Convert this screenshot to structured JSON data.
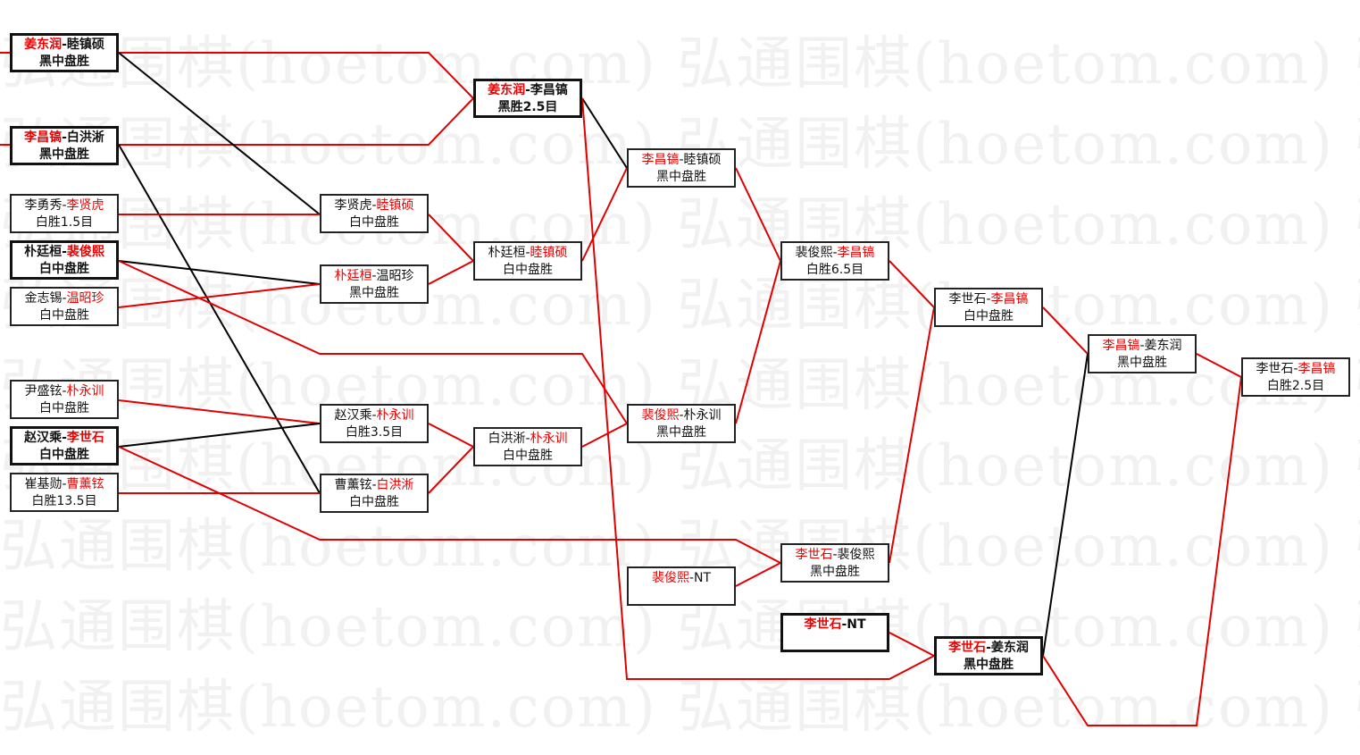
{
  "watermark": "弘通围棋(hoetom.com) 弘通围棋(hoetom.com) 弘通围棋(hoetom.com)",
  "colors": {
    "winner_line": "#e00000",
    "loser_line": "#000000",
    "winner_text": "#e00000"
  },
  "matches": [
    {
      "black": "姜东润",
      "white": "睦镇硕",
      "winner": "black",
      "result": "黑中盘胜",
      "highlight": true
    },
    {
      "black": "李昌镐",
      "white": "白洪淅",
      "winner": "black",
      "result": "黑中盘胜",
      "highlight": true
    },
    {
      "black": "李勇秀",
      "white": "李贤虎",
      "winner": "white",
      "result": "白胜1.5目",
      "highlight": false
    },
    {
      "black": "朴廷桓",
      "white": "裴俊熙",
      "winner": "white",
      "result": "白中盘胜",
      "highlight": true
    },
    {
      "black": "金志锡",
      "white": "温昭珍",
      "winner": "white",
      "result": "白中盘胜",
      "highlight": false
    },
    {
      "black": "尹盛铉",
      "white": "朴永训",
      "winner": "white",
      "result": "白中盘胜",
      "highlight": false
    },
    {
      "black": "赵汉乘",
      "white": "李世石",
      "winner": "white",
      "result": "白中盘胜",
      "highlight": true
    },
    {
      "black": "崔基勋",
      "white": "曹薰铉",
      "winner": "white",
      "result": "白胜13.5目",
      "highlight": false
    },
    {
      "black": "李贤虎",
      "white": "睦镇硕",
      "winner": "white",
      "result": "白中盘胜",
      "highlight": false
    },
    {
      "black": "朴廷桓",
      "white": "温昭珍",
      "winner": "black",
      "result": "黑中盘胜",
      "highlight": false
    },
    {
      "black": "赵汉乘",
      "white": "朴永训",
      "winner": "white",
      "result": "白胜3.5目",
      "highlight": false
    },
    {
      "black": "曹薰铉",
      "white": "白洪淅",
      "winner": "white",
      "result": "白中盘胜",
      "highlight": false
    },
    {
      "black": "姜东润",
      "white": "李昌镐",
      "winner": "black",
      "result": "黑胜2.5目",
      "highlight": true
    },
    {
      "black": "朴廷桓",
      "white": "睦镇硕",
      "winner": "white",
      "result": "白中盘胜",
      "highlight": false
    },
    {
      "black": "白洪淅",
      "white": "朴永训",
      "winner": "white",
      "result": "白中盘胜",
      "highlight": false
    },
    {
      "black": "李昌镐",
      "white": "睦镇硕",
      "winner": "black",
      "result": "黑中盘胜",
      "highlight": false
    },
    {
      "black": "裴俊熙",
      "white": "朴永训",
      "winner": "black",
      "result": "黑中盘胜",
      "highlight": false
    },
    {
      "black": "裴俊熙",
      "white": "NT",
      "winner": "black",
      "result": "",
      "highlight": false
    },
    {
      "black": "裴俊熙",
      "white": "李昌镐",
      "winner": "white",
      "result": "白胜6.5目",
      "highlight": false
    },
    {
      "black": "李世石",
      "white": "裴俊熙",
      "winner": "black",
      "result": "黑中盘胜",
      "highlight": false
    },
    {
      "black": "李世石",
      "white": "NT",
      "winner": "black",
      "result": "",
      "highlight": true
    },
    {
      "black": "李世石",
      "white": "李昌镐",
      "winner": "white",
      "result": "白中盘胜",
      "highlight": false
    },
    {
      "black": "李世石",
      "white": "姜东润",
      "winner": "black",
      "result": "黑中盘胜",
      "highlight": true
    },
    {
      "black": "李昌镐",
      "white": "姜东润",
      "winner": "black",
      "result": "黑中盘胜",
      "highlight": false
    },
    {
      "black": "李世石",
      "white": "李昌镐",
      "winner": "white",
      "result": "白胜2.5目",
      "highlight": false
    }
  ]
}
